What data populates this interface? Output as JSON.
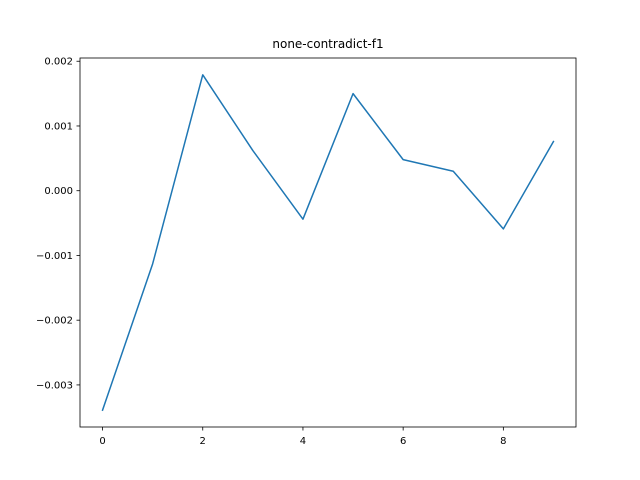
{
  "chart_data": {
    "type": "line",
    "title": "none-contradict-f1",
    "xlabel": "",
    "ylabel": "",
    "x": [
      0,
      1,
      2,
      3,
      4,
      5,
      6,
      7,
      8,
      9
    ],
    "series": [
      {
        "name": "",
        "color": "#1f77b4",
        "values": [
          -0.00339,
          -0.00113,
          0.00179,
          0.00062,
          -0.00044,
          0.0015,
          0.00048,
          0.0003,
          -0.00059,
          0.00076
        ]
      }
    ],
    "xlim": [
      -0.45,
      9.45
    ],
    "ylim": [
      -0.00365,
      0.00205
    ],
    "xticks": [
      0,
      2,
      4,
      6,
      8
    ],
    "xtick_labels": [
      "0",
      "2",
      "4",
      "6",
      "8"
    ],
    "yticks": [
      -0.003,
      -0.002,
      -0.001,
      0.0,
      0.001,
      0.002
    ],
    "ytick_labels": [
      "−0.003",
      "−0.002",
      "−0.001",
      "0.000",
      "0.001",
      "0.002"
    ],
    "grid": false,
    "legend": "none"
  }
}
